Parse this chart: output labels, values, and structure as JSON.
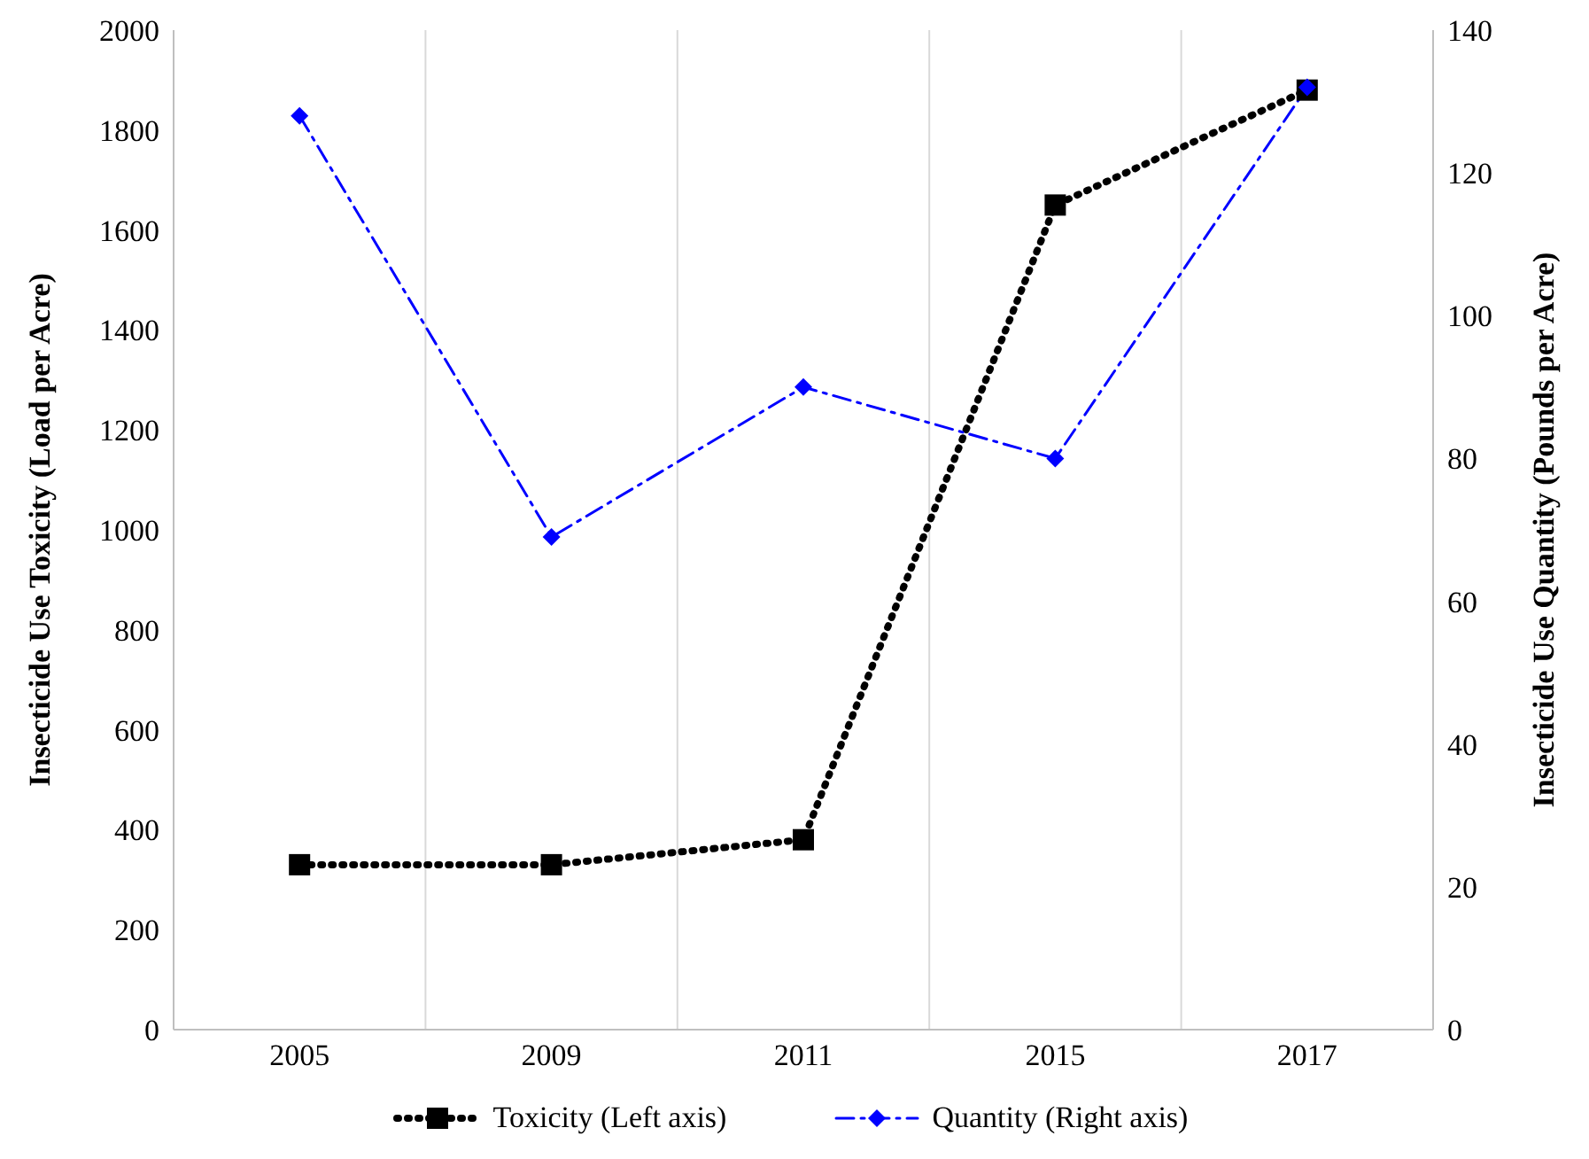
{
  "chart_data": {
    "type": "line",
    "categories": [
      "2005",
      "2009",
      "2011",
      "2015",
      "2017"
    ],
    "ylabel": "Insecticide Use Toxicity (Load per Acre)",
    "y2label": "Insecticide Use Quantity (Pounds per Acre)",
    "ylim": [
      0,
      2000
    ],
    "yticks": [
      0,
      200,
      400,
      600,
      800,
      1000,
      1200,
      1400,
      1600,
      1800,
      2000
    ],
    "y2lim": [
      0,
      140
    ],
    "y2ticks": [
      0,
      20,
      40,
      60,
      80,
      100,
      120,
      140
    ],
    "grid": "x",
    "legend": "bottom",
    "series": [
      {
        "name": "Toxicity (Left axis)",
        "color": "#000000",
        "values": [
          330,
          330,
          380,
          1650,
          1880
        ],
        "marker": "square",
        "line_style": "dotted"
      },
      {
        "name": "Quantity (Right axis)",
        "color": "#0000ff",
        "values": [
          128,
          69,
          90,
          80,
          132
        ],
        "axis": "y2",
        "marker": "diamond",
        "line_style": "dashed"
      }
    ]
  }
}
